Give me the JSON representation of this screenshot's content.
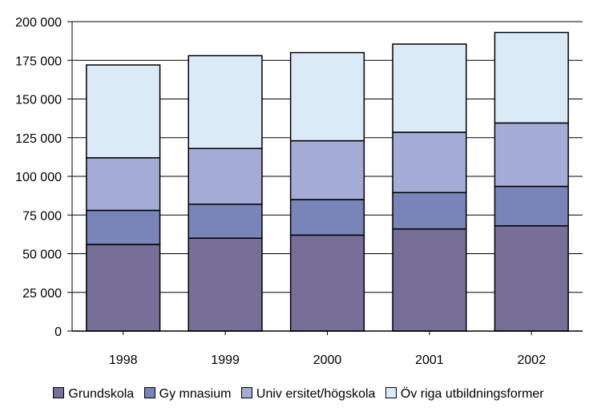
{
  "chart_data": {
    "type": "bar",
    "stacked": true,
    "title": "",
    "xlabel": "",
    "ylabel": "",
    "categories": [
      "1998",
      "1999",
      "2000",
      "2001",
      "2002"
    ],
    "ylim": [
      0,
      200000
    ],
    "yticks": [
      0,
      25000,
      50000,
      75000,
      100000,
      125000,
      150000,
      175000,
      200000
    ],
    "ytick_labels": [
      "0",
      "25 000",
      "50 000",
      "75 000",
      "100 000",
      "125 000",
      "150 000",
      "175 000",
      "200 000"
    ],
    "grid": true,
    "legend_position": "bottom",
    "series": [
      {
        "name": "Grundskola",
        "color": "#776f98",
        "values": [
          56000,
          60000,
          62000,
          66000,
          68000
        ]
      },
      {
        "name": "Gymnasium",
        "color": "#7985b8",
        "values": [
          22000,
          22000,
          23000,
          23500,
          25500
        ]
      },
      {
        "name": "Universitet/högskola",
        "color": "#a4acd6",
        "values": [
          34000,
          36000,
          38000,
          39000,
          41000
        ]
      },
      {
        "name": "Övriga utbildningsformer",
        "color": "#daeaf6",
        "values": [
          60000,
          60000,
          57000,
          57000,
          58500
        ]
      }
    ]
  },
  "legend": {
    "items": [
      {
        "label": "Grundskola",
        "color": "#776f98"
      },
      {
        "label": "Gy mnasium",
        "color": "#7985b8"
      },
      {
        "label": "Univ ersitet/högskola",
        "color": "#a4acd6"
      },
      {
        "label": "Öv riga utbildningsformer",
        "color": "#daeaf6"
      }
    ]
  }
}
